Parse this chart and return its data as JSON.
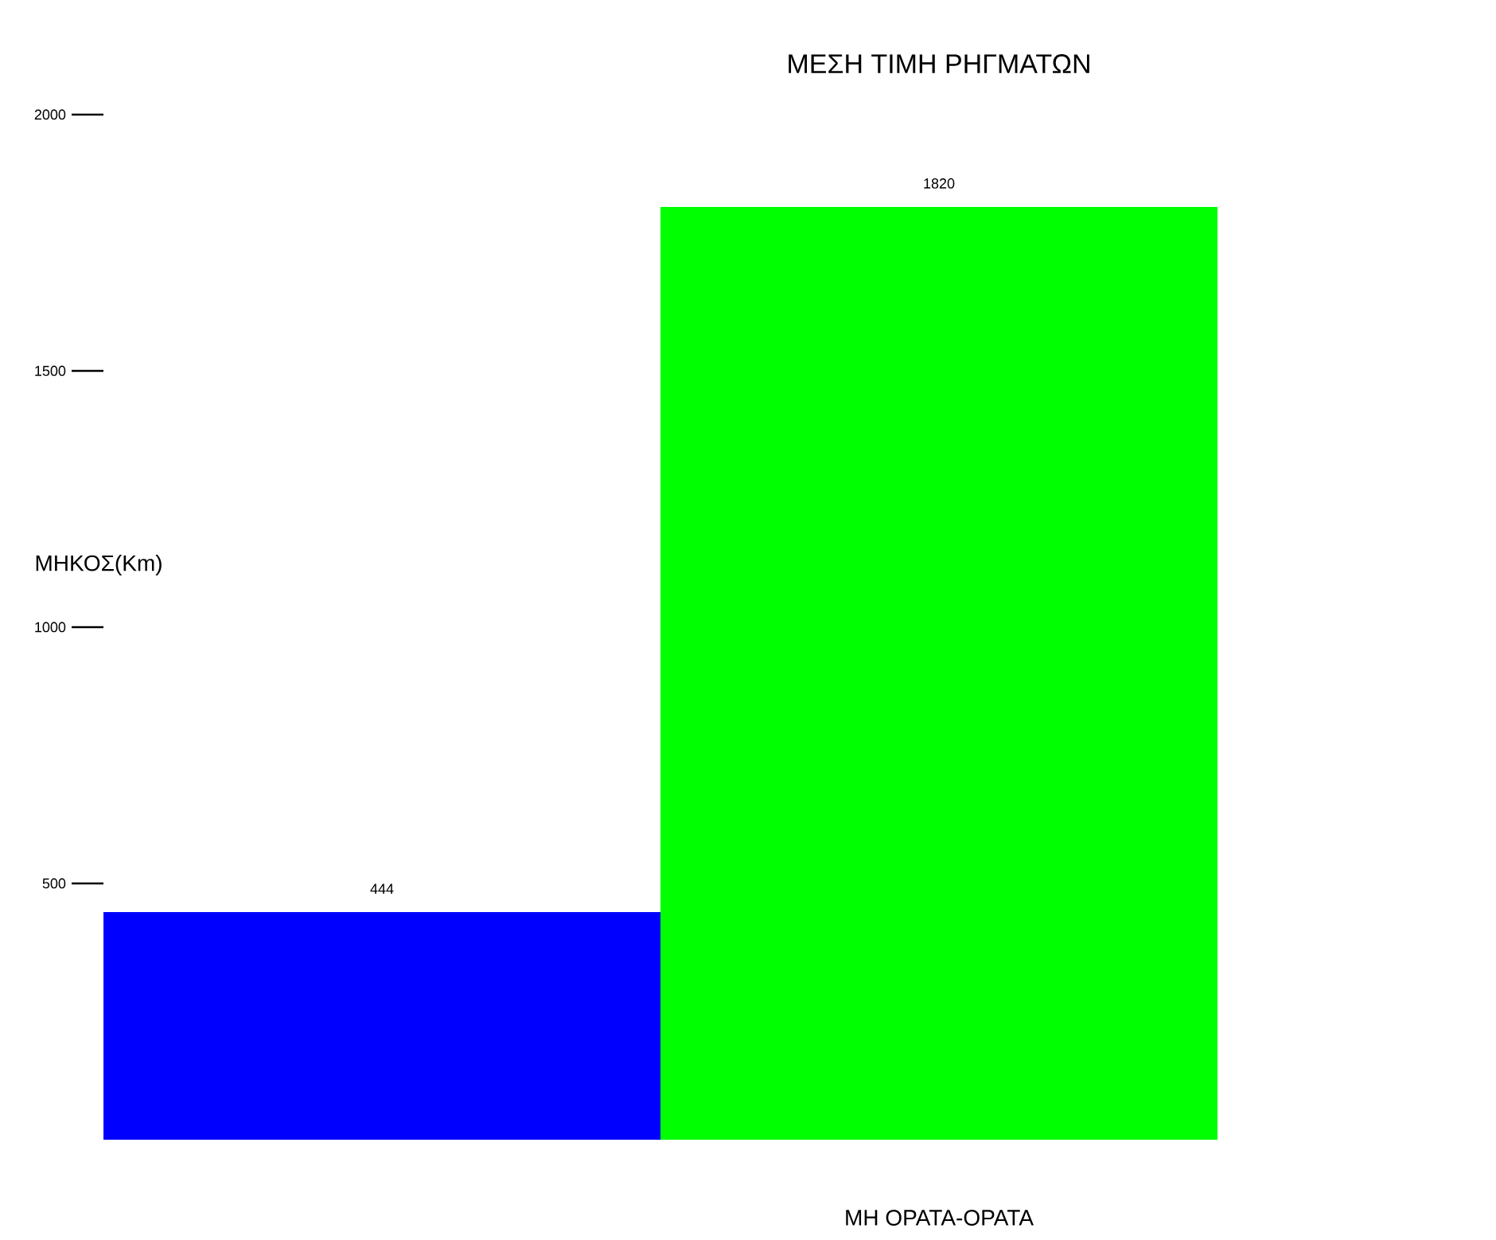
{
  "chart_data": {
    "type": "bar",
    "title": "ΜΕΣΗ ΤΙΜΗ ΡΗΓΜΑΤΩΝ",
    "xlabel": "ΜΗ ΟΡΑΤΑ-ΟΡΑΤΑ",
    "ylabel": "ΜΗΚΟΣ(Km)",
    "categories": [
      null,
      null
    ],
    "values": [
      444,
      1820
    ],
    "colors": [
      "#0000ff",
      "#00ff00"
    ],
    "ylim": [
      0,
      2000
    ],
    "yticks": [
      500,
      1000,
      1500,
      2000
    ],
    "data_labels": true
  }
}
